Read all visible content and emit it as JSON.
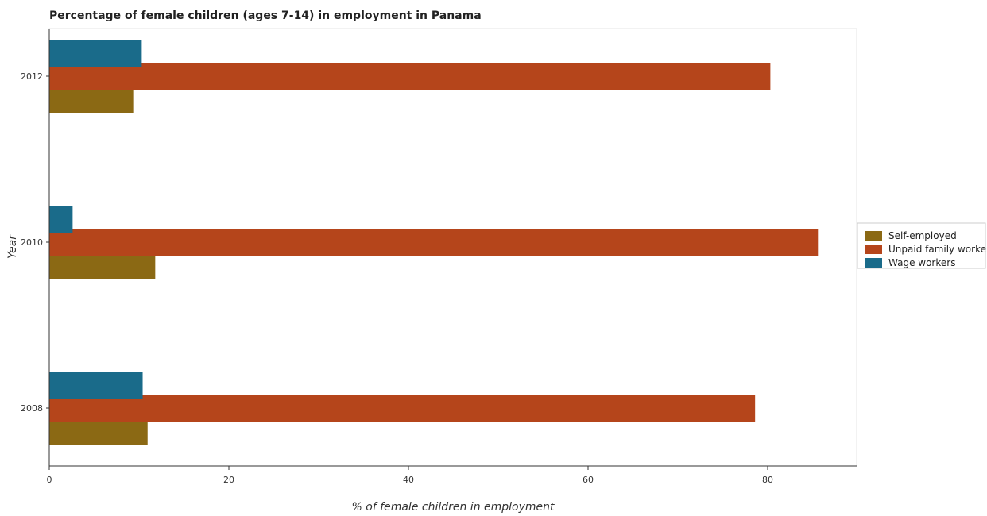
{
  "chart_data": {
    "type": "bar",
    "orientation": "horizontal",
    "title": "Percentage of female children (ages 7-14) in employment in Panama",
    "xlabel": "% of female children in employment",
    "ylabel": "Year",
    "categories": [
      "2008",
      "2010",
      "2012"
    ],
    "xlim": [
      0,
      90
    ],
    "xticks": [
      0,
      20,
      40,
      60,
      80
    ],
    "series": [
      {
        "name": "Self-employed",
        "color": "#8b6914",
        "values": [
          10.95,
          11.8,
          9.35
        ]
      },
      {
        "name": "Unpaid family workers",
        "color": "#b5451b",
        "values": [
          78.6,
          85.6,
          80.3
        ]
      },
      {
        "name": "Wage workers",
        "color": "#1a6b8a",
        "values": [
          10.4,
          2.6,
          10.3
        ]
      }
    ],
    "legend_position": "right",
    "grid": false
  }
}
